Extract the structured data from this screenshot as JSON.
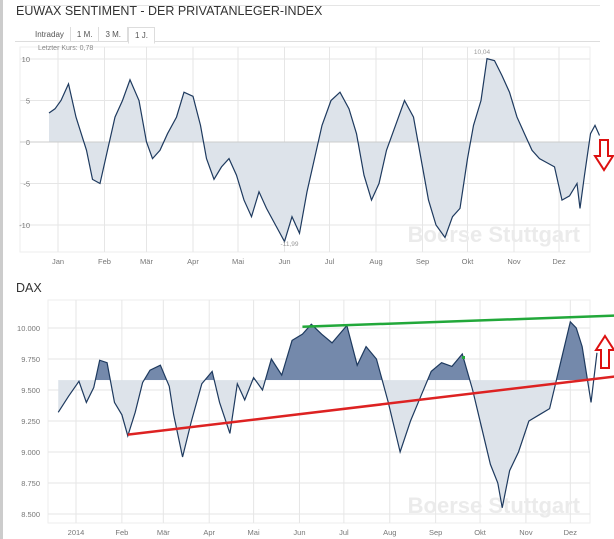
{
  "chart_data": [
    {
      "type": "area",
      "title": "EUWAX SENTIMENT - DER PRIVATANLEGER-INDEX",
      "tabs": [
        "Intraday",
        "1 M.",
        "3 M.",
        "1 J."
      ],
      "active_tab": "1 J.",
      "last_price_label": "Letzter Kurs: 0,78",
      "max_label": "10,04",
      "min_label": "-11,99",
      "baseline": 0,
      "ylim": [
        -12.5,
        10.5
      ],
      "yticks": [
        {
          "v": 10,
          "label": "10"
        },
        {
          "v": 5,
          "label": "5"
        },
        {
          "v": 0,
          "label": "0"
        },
        {
          "v": -5,
          "label": "-5"
        },
        {
          "v": -10,
          "label": "-10"
        }
      ],
      "xticks": [
        {
          "d": "2014-01-01",
          "label": "Jan"
        },
        {
          "d": "2014-02-01",
          "label": "Feb"
        },
        {
          "d": "2014-03-01",
          "label": "Mär"
        },
        {
          "d": "2014-04-01",
          "label": "Apr"
        },
        {
          "d": "2014-05-01",
          "label": "Mai"
        },
        {
          "d": "2014-06-01",
          "label": "Jun"
        },
        {
          "d": "2014-07-01",
          "label": "Jul"
        },
        {
          "d": "2014-08-01",
          "label": "Aug"
        },
        {
          "d": "2014-09-01",
          "label": "Sep"
        },
        {
          "d": "2014-10-01",
          "label": "Okt"
        },
        {
          "d": "2014-11-01",
          "label": "Nov"
        },
        {
          "d": "2014-12-01",
          "label": "Dez"
        }
      ],
      "points": [
        [
          "2013-12-26",
          3.5
        ],
        [
          "2013-12-30",
          4
        ],
        [
          "2014-01-03",
          5
        ],
        [
          "2014-01-08",
          7
        ],
        [
          "2014-01-13",
          3
        ],
        [
          "2014-01-20",
          -1
        ],
        [
          "2014-01-24",
          -4.5
        ],
        [
          "2014-01-29",
          -5
        ],
        [
          "2014-02-03",
          -1
        ],
        [
          "2014-02-08",
          3
        ],
        [
          "2014-02-13",
          5
        ],
        [
          "2014-02-18",
          7.5
        ],
        [
          "2014-02-24",
          5
        ],
        [
          "2014-03-01",
          0
        ],
        [
          "2014-03-05",
          -2
        ],
        [
          "2014-03-10",
          -1
        ],
        [
          "2014-03-15",
          1
        ],
        [
          "2014-03-21",
          3
        ],
        [
          "2014-03-26",
          6
        ],
        [
          "2014-04-01",
          5.5
        ],
        [
          "2014-04-06",
          2
        ],
        [
          "2014-04-10",
          -2
        ],
        [
          "2014-04-15",
          -4.5
        ],
        [
          "2014-04-20",
          -3
        ],
        [
          "2014-04-25",
          -2
        ],
        [
          "2014-04-30",
          -4
        ],
        [
          "2014-05-05",
          -7
        ],
        [
          "2014-05-10",
          -9
        ],
        [
          "2014-05-15",
          -6
        ],
        [
          "2014-05-20",
          -8
        ],
        [
          "2014-05-26",
          -10
        ],
        [
          "2014-06-01",
          -11.99
        ],
        [
          "2014-06-06",
          -9
        ],
        [
          "2014-06-11",
          -11
        ],
        [
          "2014-06-16",
          -6
        ],
        [
          "2014-06-21",
          -2
        ],
        [
          "2014-06-26",
          2
        ],
        [
          "2014-07-02",
          5
        ],
        [
          "2014-07-08",
          6
        ],
        [
          "2014-07-14",
          4
        ],
        [
          "2014-07-19",
          1
        ],
        [
          "2014-07-24",
          -4
        ],
        [
          "2014-07-29",
          -7
        ],
        [
          "2014-08-03",
          -5
        ],
        [
          "2014-08-08",
          -1
        ],
        [
          "2014-08-14",
          2
        ],
        [
          "2014-08-20",
          5
        ],
        [
          "2014-08-26",
          3
        ],
        [
          "2014-08-31",
          -2
        ],
        [
          "2014-09-05",
          -7
        ],
        [
          "2014-09-10",
          -10
        ],
        [
          "2014-09-16",
          -11.5
        ],
        [
          "2014-09-21",
          -9
        ],
        [
          "2014-09-26",
          -8
        ],
        [
          "2014-10-01",
          -2
        ],
        [
          "2014-10-05",
          2
        ],
        [
          "2014-10-10",
          5
        ],
        [
          "2014-10-14",
          10.04
        ],
        [
          "2014-10-19",
          9.8
        ],
        [
          "2014-10-24",
          8
        ],
        [
          "2014-10-29",
          6
        ],
        [
          "2014-11-03",
          3
        ],
        [
          "2014-11-08",
          1
        ],
        [
          "2014-11-13",
          -1
        ],
        [
          "2014-11-18",
          -2
        ],
        [
          "2014-11-23",
          -2.5
        ],
        [
          "2014-11-28",
          -3
        ],
        [
          "2014-12-03",
          -7
        ],
        [
          "2014-12-08",
          -6.5
        ],
        [
          "2014-12-13",
          -5
        ],
        [
          "2014-12-15",
          -8
        ],
        [
          "2014-12-18",
          -4
        ],
        [
          "2014-12-22",
          1
        ],
        [
          "2014-12-25",
          2
        ],
        [
          "2014-12-28",
          0.78
        ]
      ]
    },
    {
      "type": "area",
      "title": "DAX",
      "baseline": 9580,
      "ylim": [
        8450,
        10200
      ],
      "yticks": [
        {
          "v": 10000,
          "label": "10.000"
        },
        {
          "v": 9750,
          "label": "9.750"
        },
        {
          "v": 9500,
          "label": "9.500"
        },
        {
          "v": 9250,
          "label": "9.250"
        },
        {
          "v": 9000,
          "label": "9.000"
        },
        {
          "v": 8750,
          "label": "8.750"
        },
        {
          "v": 8500,
          "label": "8.500"
        }
      ],
      "xticks": [
        {
          "d": "2014-01-01",
          "label": "2014"
        },
        {
          "d": "2014-02-01",
          "label": "Feb"
        },
        {
          "d": "2014-03-01",
          "label": "Mär"
        },
        {
          "d": "2014-04-01",
          "label": "Apr"
        },
        {
          "d": "2014-05-01",
          "label": "Mai"
        },
        {
          "d": "2014-06-01",
          "label": "Jun"
        },
        {
          "d": "2014-07-01",
          "label": "Jul"
        },
        {
          "d": "2014-08-01",
          "label": "Aug"
        },
        {
          "d": "2014-09-01",
          "label": "Sep"
        },
        {
          "d": "2014-10-01",
          "label": "Okt"
        },
        {
          "d": "2014-11-01",
          "label": "Nov"
        },
        {
          "d": "2014-12-01",
          "label": "Dez"
        }
      ],
      "points": [
        [
          "2013-12-20",
          9320
        ],
        [
          "2013-12-27",
          9450
        ],
        [
          "2014-01-03",
          9570
        ],
        [
          "2014-01-08",
          9400
        ],
        [
          "2014-01-13",
          9520
        ],
        [
          "2014-01-17",
          9740
        ],
        [
          "2014-01-22",
          9720
        ],
        [
          "2014-01-27",
          9400
        ],
        [
          "2014-02-01",
          9300
        ],
        [
          "2014-02-05",
          9130
        ],
        [
          "2014-02-10",
          9320
        ],
        [
          "2014-02-15",
          9560
        ],
        [
          "2014-02-20",
          9660
        ],
        [
          "2014-02-27",
          9700
        ],
        [
          "2014-03-05",
          9530
        ],
        [
          "2014-03-08",
          9300
        ],
        [
          "2014-03-14",
          8960
        ],
        [
          "2014-03-20",
          9250
        ],
        [
          "2014-03-27",
          9550
        ],
        [
          "2014-04-03",
          9650
        ],
        [
          "2014-04-08",
          9400
        ],
        [
          "2014-04-15",
          9150
        ],
        [
          "2014-04-20",
          9550
        ],
        [
          "2014-04-25",
          9420
        ],
        [
          "2014-05-01",
          9600
        ],
        [
          "2014-05-07",
          9500
        ],
        [
          "2014-05-13",
          9750
        ],
        [
          "2014-05-20",
          9620
        ],
        [
          "2014-05-27",
          9900
        ],
        [
          "2014-06-03",
          9950
        ],
        [
          "2014-06-09",
          10030
        ],
        [
          "2014-06-16",
          9950
        ],
        [
          "2014-06-23",
          9880
        ],
        [
          "2014-07-03",
          10020
        ],
        [
          "2014-07-10",
          9700
        ],
        [
          "2014-07-16",
          9850
        ],
        [
          "2014-07-23",
          9750
        ],
        [
          "2014-07-31",
          9400
        ],
        [
          "2014-08-08",
          9000
        ],
        [
          "2014-08-15",
          9250
        ],
        [
          "2014-08-22",
          9450
        ],
        [
          "2014-08-29",
          9650
        ],
        [
          "2014-09-05",
          9720
        ],
        [
          "2014-09-12",
          9690
        ],
        [
          "2014-09-19",
          9790
        ],
        [
          "2014-09-26",
          9500
        ],
        [
          "2014-10-02",
          9200
        ],
        [
          "2014-10-08",
          8900
        ],
        [
          "2014-10-13",
          8750
        ],
        [
          "2014-10-16",
          8550
        ],
        [
          "2014-10-21",
          8850
        ],
        [
          "2014-10-27",
          9000
        ],
        [
          "2014-11-03",
          9250
        ],
        [
          "2014-11-10",
          9300
        ],
        [
          "2014-11-17",
          9350
        ],
        [
          "2014-11-24",
          9700
        ],
        [
          "2014-12-01",
          10050
        ],
        [
          "2014-12-05",
          10000
        ],
        [
          "2014-12-09",
          9850
        ],
        [
          "2014-12-15",
          9400
        ],
        [
          "2014-12-19",
          9800
        ]
      ],
      "trendlines": [
        {
          "color": "#22a83a",
          "from": [
            "2014-06-03",
            10010
          ],
          "to": [
            "2015-01-01",
            10100
          ]
        },
        {
          "color": "#dd2222",
          "from": [
            "2014-02-05",
            9140
          ],
          "to": [
            "2015-01-01",
            9610
          ]
        }
      ]
    }
  ],
  "annotations": {
    "sentiment_arrow": "down",
    "dax_arrow": "up",
    "arrow_color": "#dd1111"
  },
  "watermark": "Boerse Stuttgart",
  "colors": {
    "line": "#1e3a5f",
    "fill_light": "#dde3ea",
    "fill_dark": "#7489ab",
    "grid": "#e6e6e6"
  }
}
